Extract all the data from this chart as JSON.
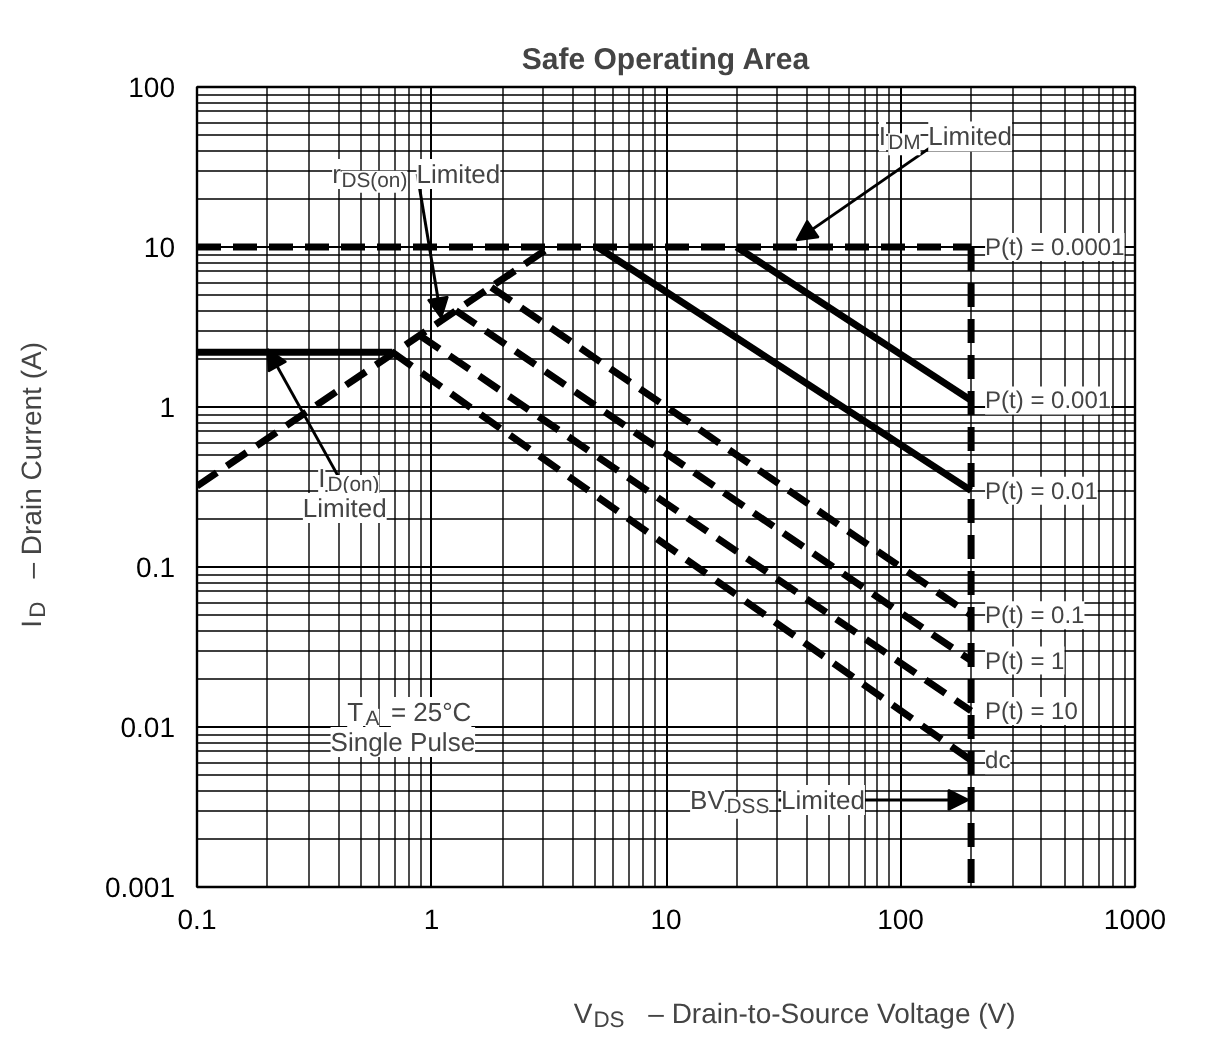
{
  "chart_data": {
    "type": "line",
    "title": "Safe Operating Area",
    "xlabel": "V$_{DS}$  –  Drain-to-Source Voltage (V)",
    "ylabel": "I$_{D}$  – Drain Current (A)",
    "log": "xy",
    "xlim": [
      0.1,
      1000
    ],
    "ylim": [
      0.001,
      100
    ],
    "xticks": [
      0.1,
      1,
      10,
      100,
      1000
    ],
    "yticks": [
      0.001,
      0.01,
      0.1,
      1,
      10,
      100
    ],
    "grid": true,
    "series": [
      {
        "color": "#000000",
        "line_style": "dashed",
        "x": [
          0.1,
          200
        ],
        "values": [
          10,
          10
        ]
      },
      {
        "color": "#000000",
        "line_style": "dashed",
        "x": [
          200,
          200
        ],
        "values": [
          10,
          0.001
        ]
      },
      {
        "color": "#000000",
        "line_style": "dashed",
        "x": [
          0.1,
          3.2
        ],
        "values": [
          0.32,
          10
        ]
      },
      {
        "color": "#000000",
        "line_style": "solid",
        "x": [
          0.1,
          0.68
        ],
        "values": [
          2.2,
          2.2
        ]
      },
      {
        "name": "P(t) = 0.001",
        "color": "#000000",
        "line_style": "solid",
        "x": [
          20,
          200
        ],
        "values": [
          10,
          1.1
        ]
      },
      {
        "name": "P(t) = 0.01",
        "color": "#000000",
        "line_style": "solid",
        "x": [
          5.1,
          200
        ],
        "values": [
          10,
          0.3
        ]
      },
      {
        "name": "P(t) = 0.1",
        "color": "#000000",
        "line_style": "dashed",
        "x": [
          1.8,
          200
        ],
        "values": [
          5.6,
          0.05
        ]
      },
      {
        "name": "P(t) = 1",
        "color": "#000000",
        "line_style": "dashed",
        "x": [
          1.27,
          200
        ],
        "values": [
          4.0,
          0.026
        ]
      },
      {
        "name": "P(t) = 10",
        "color": "#000000",
        "line_style": "dashed",
        "x": [
          0.89,
          200
        ],
        "values": [
          2.8,
          0.0126
        ]
      },
      {
        "name": "dc",
        "color": "#000000",
        "line_style": "dashed",
        "x": [
          0.68,
          200
        ],
        "values": [
          2.2,
          0.0062
        ]
      }
    ],
    "annotations": [
      {
        "text": "I$_{DM}$ Limited",
        "x": 36,
        "y": 11
      },
      {
        "text": "r$_{DS(on)}$ Limited",
        "x": 1.1,
        "y": 3.6
      },
      {
        "text": "I$_{D(on)}$\nLimited",
        "x": 0.2,
        "y": 2.3
      },
      {
        "text": "BV$_{DSS}$ Limited",
        "x": 195,
        "y": 0.0035
      },
      {
        "text": "P(t) = 0.0001",
        "x": 200,
        "y": 10
      },
      "T$_{A}$ = 25°C\nSingle Pulse"
    ]
  }
}
